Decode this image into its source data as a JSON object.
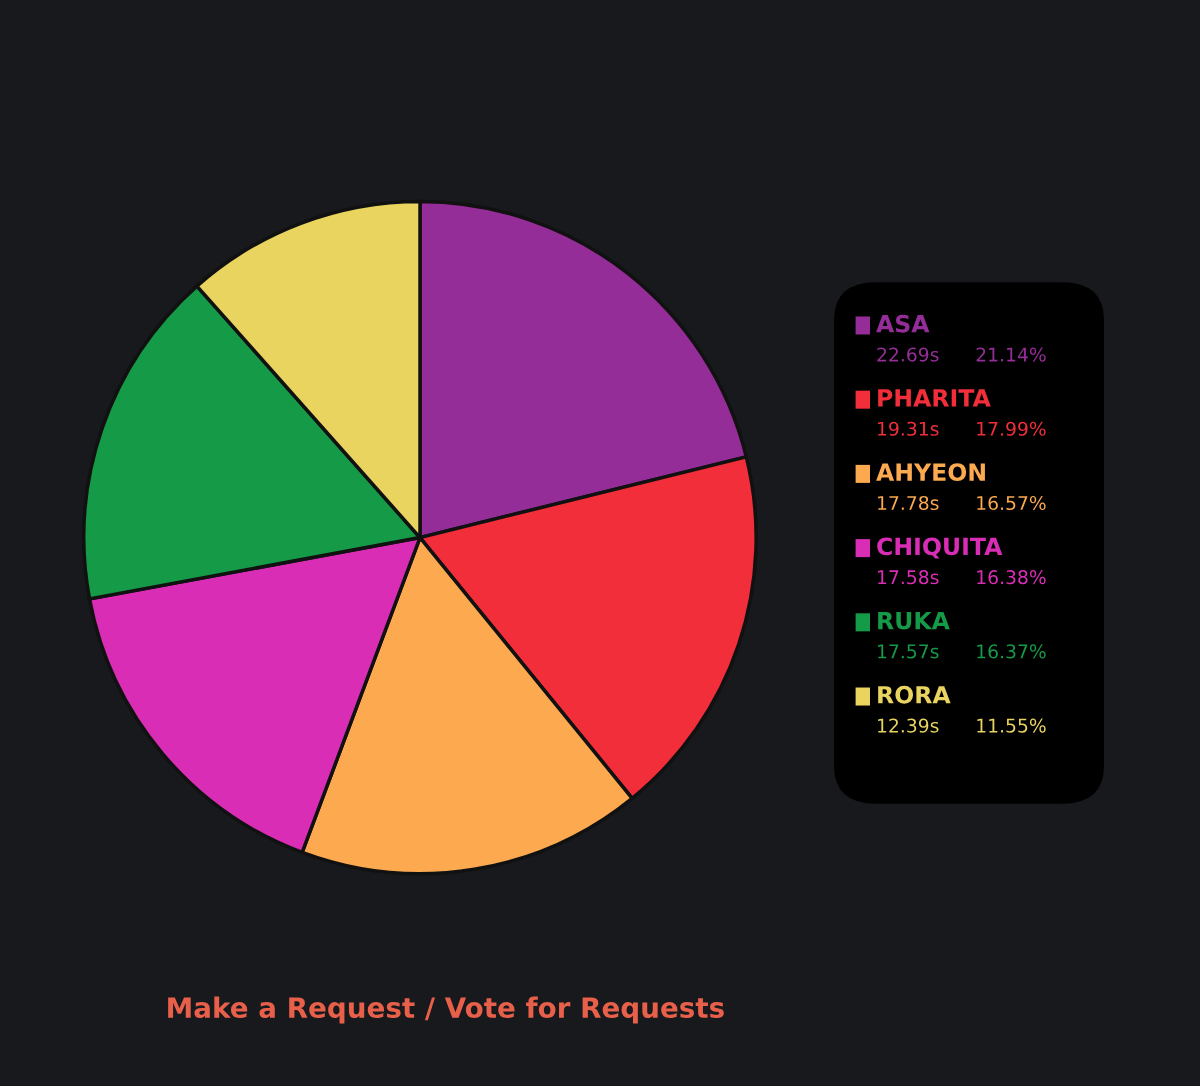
{
  "chart_data": {
    "type": "pie",
    "categories": [
      "ASA",
      "PHARITA",
      "AHYEON",
      "CHIQUITA",
      "RUKA",
      "RORA"
    ],
    "values": [
      21.14,
      17.99,
      16.57,
      16.38,
      16.37,
      11.55
    ],
    "value_labels": [
      "22.69s      21.14%",
      "19.31s      17.99%",
      "17.78s      16.57%",
      "17.58s      16.38%",
      "17.57s      16.37%",
      "12.39s      11.55%"
    ],
    "colors": [
      "#952d98",
      "#f22e3b",
      "#fca94f",
      "#d92db5",
      "#159a48",
      "#e8d45e"
    ],
    "legend": "right",
    "annotations": [
      "Make a Request / Vote for Requests"
    ]
  }
}
